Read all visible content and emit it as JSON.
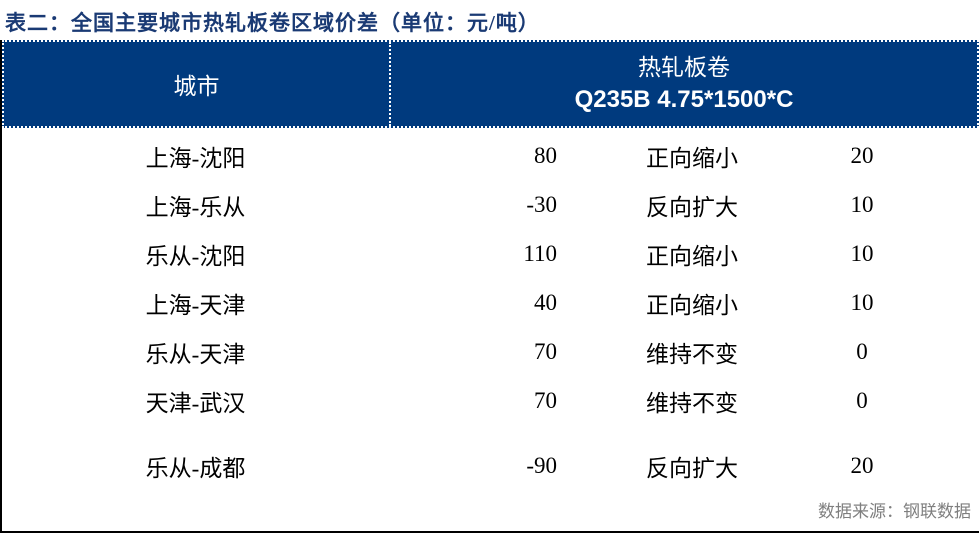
{
  "title": "表二：全国主要城市热轧板卷区域价差（单位：元/吨）",
  "table": {
    "header": {
      "city": "城市",
      "product": "热轧板卷",
      "spec": "Q235B 4.75*1500*C"
    },
    "rows": [
      {
        "route": "上海-沈阳",
        "spread": "80",
        "trend": "正向缩小",
        "change": "20"
      },
      {
        "route": "上海-乐从",
        "spread": "-30",
        "trend": "反向扩大",
        "change": "10"
      },
      {
        "route": "乐从-沈阳",
        "spread": "110",
        "trend": "正向缩小",
        "change": "10"
      },
      {
        "route": "上海-天津",
        "spread": "40",
        "trend": "正向缩小",
        "change": "10"
      },
      {
        "route": "乐从-天津",
        "spread": "70",
        "trend": "维持不变",
        "change": "0"
      },
      {
        "route": "天津-武汉",
        "spread": "70",
        "trend": "维持不变",
        "change": "0"
      },
      {
        "route": "乐从-成都",
        "spread": "-90",
        "trend": "反向扩大",
        "change": "20"
      }
    ]
  },
  "footer": {
    "source": "数据来源：钢联数据"
  },
  "colors": {
    "header_bg": "#003A7E",
    "header_text": "#FFFFFF",
    "title_text": "#1A3A74",
    "body_text": "#000000",
    "footer_text": "#7F7F7F",
    "border": "#000000"
  }
}
